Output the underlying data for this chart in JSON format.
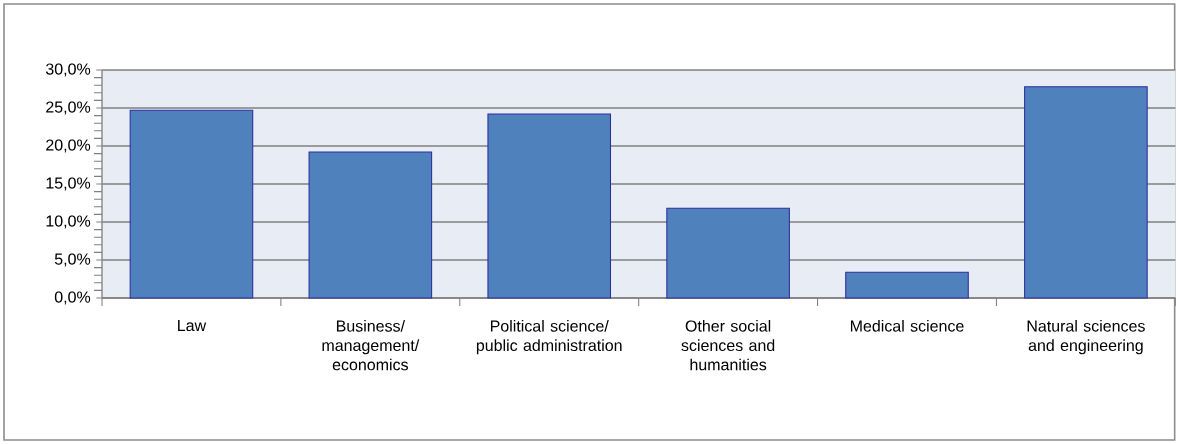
{
  "chart_data": {
    "type": "bar",
    "categories": [
      "Law",
      "Business/ management/ economics",
      "Political science/ public administration",
      "Other social sciences and humanities",
      "Medical science",
      "Natural sciences and engineering"
    ],
    "values": [
      24.7,
      19.2,
      24.2,
      11.8,
      3.4,
      27.8
    ],
    "color": "#4f81bd",
    "ylim": [
      0,
      30
    ],
    "yticks": [
      {
        "value": 0,
        "label": "0,0%"
      },
      {
        "value": 5,
        "label": "5,0%"
      },
      {
        "value": 10,
        "label": "10,0%"
      },
      {
        "value": 15,
        "label": "15,0%"
      },
      {
        "value": 20,
        "label": "20,0%"
      },
      {
        "value": 25,
        "label": "25,0%"
      },
      {
        "value": 30,
        "label": "30,0%"
      }
    ],
    "grid": "y"
  }
}
